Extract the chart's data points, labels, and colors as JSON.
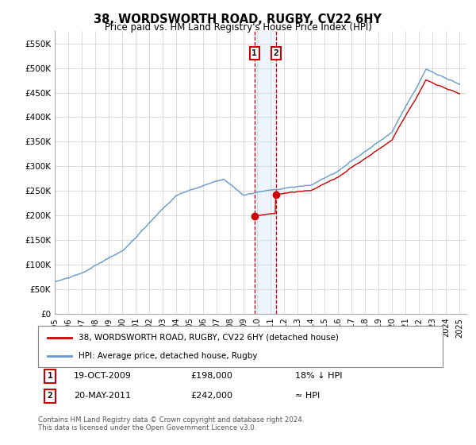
{
  "title1": "38, WORDSWORTH ROAD, RUGBY, CV22 6HY",
  "title2": "Price paid vs. HM Land Registry's House Price Index (HPI)",
  "ylabel_ticks": [
    "£0",
    "£50K",
    "£100K",
    "£150K",
    "£200K",
    "£250K",
    "£300K",
    "£350K",
    "£400K",
    "£450K",
    "£500K",
    "£550K"
  ],
  "ylabel_values": [
    0,
    50000,
    100000,
    150000,
    200000,
    250000,
    300000,
    350000,
    400000,
    450000,
    500000,
    550000
  ],
  "ylim": [
    0,
    575000
  ],
  "xlim_start": 1995.0,
  "xlim_end": 2025.5,
  "sale1_date": 2009.8,
  "sale1_price": 198000,
  "sale1_label": "1",
  "sale2_date": 2011.38,
  "sale2_price": 242000,
  "sale2_label": "2",
  "hpi_color": "#6699cc",
  "price_color": "#cc0000",
  "vline_color": "#cc0000",
  "shade_color": "#cce0f5",
  "legend_line1": "38, WORDSWORTH ROAD, RUGBY, CV22 6HY (detached house)",
  "legend_line2": "HPI: Average price, detached house, Rugby",
  "table_row1_num": "1",
  "table_row1_date": "19-OCT-2009",
  "table_row1_price": "£198,000",
  "table_row1_hpi": "18% ↓ HPI",
  "table_row2_num": "2",
  "table_row2_date": "20-MAY-2011",
  "table_row2_price": "£242,000",
  "table_row2_hpi": "≈ HPI",
  "footnote": "Contains HM Land Registry data © Crown copyright and database right 2024.\nThis data is licensed under the Open Government Licence v3.0.",
  "background_color": "#ffffff",
  "grid_color": "#cccccc"
}
